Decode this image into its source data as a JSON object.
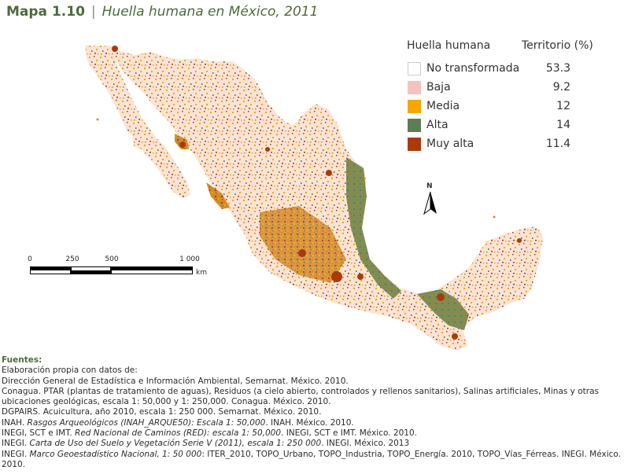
{
  "title": {
    "number": "Mapa 1.10",
    "separator": "|",
    "name": "Huella humana en México, 2011"
  },
  "legend": {
    "header_category": "Huella humana",
    "header_value": "Territorio (%)",
    "items": [
      {
        "label": "No transformada",
        "value": "53.3",
        "color": "#ffffff",
        "border": "#cccccc"
      },
      {
        "label": "Baja",
        "value": "9.2",
        "color": "#f7c2be",
        "border": "#f7c2be"
      },
      {
        "label": "Media",
        "value": "12",
        "color": "#f5a600",
        "border": "#f5a600"
      },
      {
        "label": "Alta",
        "value": "14",
        "color": "#5e7c56",
        "border": "#5e7c56"
      },
      {
        "label": "Muy alta",
        "value": "11.4",
        "color": "#a93a0c",
        "border": "#a93a0c"
      }
    ]
  },
  "scale_bar": {
    "ticks": [
      "0",
      "250",
      "500",
      "1 000"
    ],
    "unit": "km"
  },
  "north_arrow": {
    "label": "N"
  },
  "sources": {
    "heading": "Fuentes:",
    "lines": [
      {
        "pre": "Elaboración propia con datos de:",
        "it": "",
        "post": ""
      },
      {
        "pre": "Dirección General de Estadística e Información Ambiental, Semarnat. México. 2010.",
        "it": "",
        "post": ""
      },
      {
        "pre": "Conagua. PTAR (plantas de tratamiento de aguas), Residuos (a cielo abierto, controlados y rellenos sanitarios), Salinas artificiales, Minas y otras ubicaciones geológicas, escala 1: 50,000 y 1: 250,000. Conagua. México. 2010.",
        "it": "",
        "post": ""
      },
      {
        "pre": "DGPAIRS. Acuicultura, año 2010, escala 1: 250 000. Semarnat. México. 2010.",
        "it": "",
        "post": ""
      },
      {
        "pre": "INAH. ",
        "it": "Rasgos Arqueológicos (INAH_ARQUE50): Escala 1: 50,000",
        "post": ". INAH. México. 2010."
      },
      {
        "pre": "INEGI, SCT e IMT. ",
        "it": "Red Nacional de Caminos (RED): escala 1: 50,000",
        "post": ". INEGI, SCT e IMT. México. 2010."
      },
      {
        "pre": "INEGI. ",
        "it": "Carta de Uso del Suelo y Vegetación Serie V (2011), escala 1: 250 000",
        "post": ". INEGI. México. 2013"
      },
      {
        "pre": "INEGI. ",
        "it": "Marco Geoestadístico Nacional, 1: 50 000",
        "post": ": ITER_2010, TOPO_Urbano, TOPO_Industria, TOPO_Energía. 2010, TOPO_Vías_Férreas. INEGI. México. 2010."
      }
    ]
  }
}
